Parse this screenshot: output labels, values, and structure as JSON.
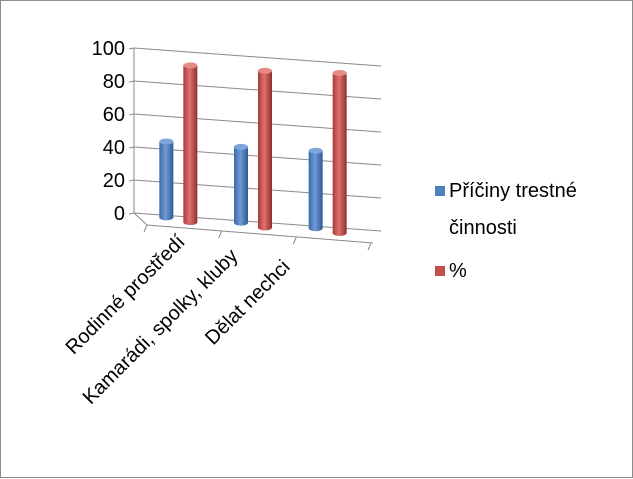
{
  "chart_data": {
    "type": "bar",
    "title": "",
    "xlabel": "",
    "ylabel": "",
    "categories": [
      "Rodinné prostředí",
      "Kamarádi, spolky, kluby",
      "Dělat nechci"
    ],
    "series": [
      {
        "name": "Příčiny trestné činnosti",
        "values": [
          46,
          46,
          47
        ],
        "color": "#4f81bd"
      },
      {
        "name": "%",
        "values": [
          95,
          95,
          97
        ],
        "color": "#c0504d"
      }
    ],
    "y_ticks": [
      "0",
      "20",
      "40",
      "60",
      "80",
      "100"
    ],
    "ylim": [
      0,
      100
    ],
    "grid": true,
    "legend_position": "right",
    "three_d": true
  }
}
